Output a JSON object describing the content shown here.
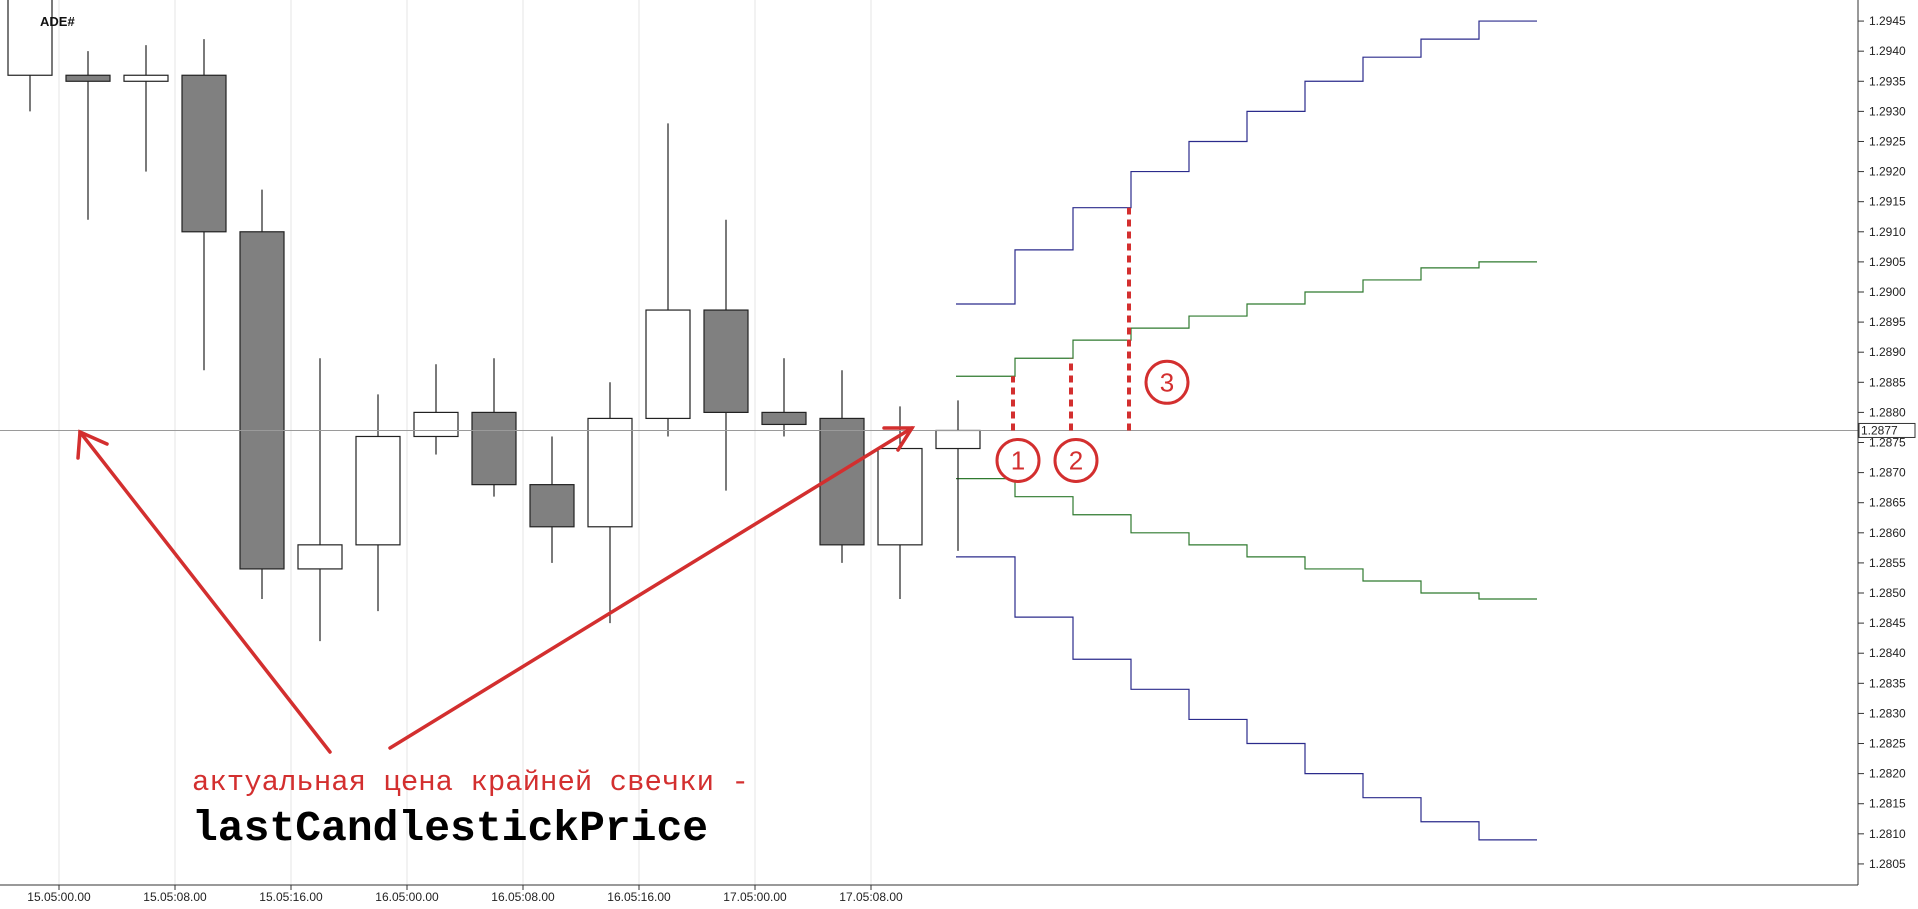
{
  "chart_data": {
    "type": "candlestick",
    "corner_label": "ADE#",
    "y_ticks": [
      "1.2945",
      "1.2940",
      "1.2935",
      "1.2930",
      "1.2925",
      "1.2920",
      "1.2915",
      "1.2910",
      "1.2905",
      "1.2900",
      "1.2895",
      "1.2890",
      "1.2885",
      "1.2880",
      "1.2875",
      "1.2870",
      "1.2865",
      "1.2860",
      "1.2855",
      "1.2850",
      "1.2845",
      "1.2840",
      "1.2835",
      "1.2830",
      "1.2825",
      "1.2820",
      "1.2815",
      "1.2810",
      "1.2805"
    ],
    "ylim": [
      1.28015,
      1.29485
    ],
    "time_ticks": [
      {
        "label": "15.05:00.00",
        "index": 0.5
      },
      {
        "label": "15.05:08.00",
        "index": 2.5
      },
      {
        "label": "15.05:16.00",
        "index": 4.5
      },
      {
        "label": "16.05:00.00",
        "index": 6.5
      },
      {
        "label": "16.05:08.00",
        "index": 8.5
      },
      {
        "label": "16.05:16.00",
        "index": 10.5
      },
      {
        "label": "17.05:00.00",
        "index": 12.5
      },
      {
        "label": "17.05:08.00",
        "index": 14.5
      }
    ],
    "candles": [
      {
        "o": 1.2936,
        "h": 1.2955,
        "l": 1.293,
        "c": 1.2955
      },
      {
        "o": 1.2936,
        "h": 1.294,
        "l": 1.2912,
        "c": 1.2935
      },
      {
        "o": 1.2935,
        "h": 1.2941,
        "l": 1.292,
        "c": 1.2936
      },
      {
        "o": 1.2936,
        "h": 1.2942,
        "l": 1.2887,
        "c": 1.291
      },
      {
        "o": 1.291,
        "h": 1.2917,
        "l": 1.2849,
        "c": 1.2854
      },
      {
        "o": 1.2854,
        "h": 1.2889,
        "l": 1.2842,
        "c": 1.2858
      },
      {
        "o": 1.2858,
        "h": 1.2883,
        "l": 1.2847,
        "c": 1.2876
      },
      {
        "o": 1.2876,
        "h": 1.2888,
        "l": 1.2873,
        "c": 1.288
      },
      {
        "o": 1.288,
        "h": 1.2889,
        "l": 1.2866,
        "c": 1.2868
      },
      {
        "o": 1.2868,
        "h": 1.2876,
        "l": 1.2855,
        "c": 1.2861
      },
      {
        "o": 1.2861,
        "h": 1.2885,
        "l": 1.2845,
        "c": 1.2879
      },
      {
        "o": 1.2879,
        "h": 1.2928,
        "l": 1.2876,
        "c": 1.2897
      },
      {
        "o": 1.2897,
        "h": 1.2912,
        "l": 1.2867,
        "c": 1.288
      },
      {
        "o": 1.288,
        "h": 1.2889,
        "l": 1.2876,
        "c": 1.2878
      },
      {
        "o": 1.2879,
        "h": 1.2887,
        "l": 1.2855,
        "c": 1.2858
      },
      {
        "o": 1.2858,
        "h": 1.2881,
        "l": 1.2849,
        "c": 1.2874
      },
      {
        "o": 1.2874,
        "h": 1.2882,
        "l": 1.2857,
        "c": 1.2877
      }
    ],
    "current_price": {
      "value": 1.2877,
      "label": "1.2877"
    },
    "ladders": [
      {
        "color": "#2b2b8c",
        "start": 16,
        "values": [
          1.2898,
          1.2907,
          1.2914,
          1.292,
          1.2925,
          1.293,
          1.2935,
          1.2939,
          1.2942,
          1.2945
        ]
      },
      {
        "color": "#2f7a2f",
        "start": 16,
        "values": [
          1.2886,
          1.2889,
          1.2892,
          1.2894,
          1.2896,
          1.2898,
          1.29,
          1.2902,
          1.2904,
          1.2905
        ]
      },
      {
        "color": "#2f7a2f",
        "start": 16,
        "values": [
          1.2869,
          1.2866,
          1.2863,
          1.286,
          1.2858,
          1.2856,
          1.2854,
          1.2852,
          1.285,
          1.2849
        ]
      },
      {
        "color": "#2b2b8c",
        "start": 16,
        "values": [
          1.2856,
          1.2846,
          1.2839,
          1.2834,
          1.2829,
          1.2825,
          1.282,
          1.2816,
          1.2812,
          1.2809
        ]
      }
    ],
    "markers": [
      {
        "label": "1",
        "index": 17.0,
        "from": 1.2877,
        "to": 1.2886
      },
      {
        "label": "2",
        "index": 18.0,
        "from": 1.2877,
        "to": 1.2889
      },
      {
        "label": "3",
        "index": 19.0,
        "from": 1.2877,
        "to": 1.2914
      }
    ],
    "annotation": {
      "line1": "актуальная цена крайней свечки -",
      "line2": "lastCandlestickPrice"
    }
  }
}
